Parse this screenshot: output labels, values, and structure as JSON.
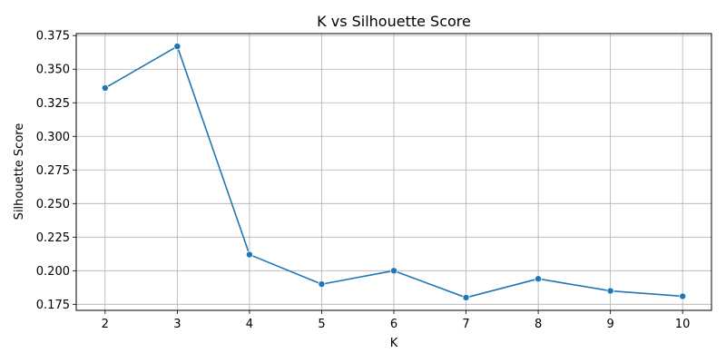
{
  "chart_data": {
    "type": "line",
    "title": "K vs Silhouette Score",
    "xlabel": "K",
    "ylabel": "Silhouette Score",
    "x": [
      2,
      3,
      4,
      5,
      6,
      7,
      8,
      9,
      10
    ],
    "series": [
      {
        "values": [
          0.336,
          0.367,
          0.212,
          0.19,
          0.2,
          0.18,
          0.194,
          0.185,
          0.181
        ],
        "color": "#1f77b4",
        "marker": "circle"
      }
    ],
    "xlim": [
      1.6,
      10.4
    ],
    "ylim": [
      0.1705,
      0.3765
    ],
    "xticks": [
      "2",
      "3",
      "4",
      "5",
      "6",
      "7",
      "8",
      "9",
      "10"
    ],
    "yticks": [
      "0.175",
      "0.200",
      "0.225",
      "0.250",
      "0.275",
      "0.300",
      "0.325",
      "0.350",
      "0.375"
    ],
    "grid": true,
    "grid_color": "#b0b0b0"
  }
}
